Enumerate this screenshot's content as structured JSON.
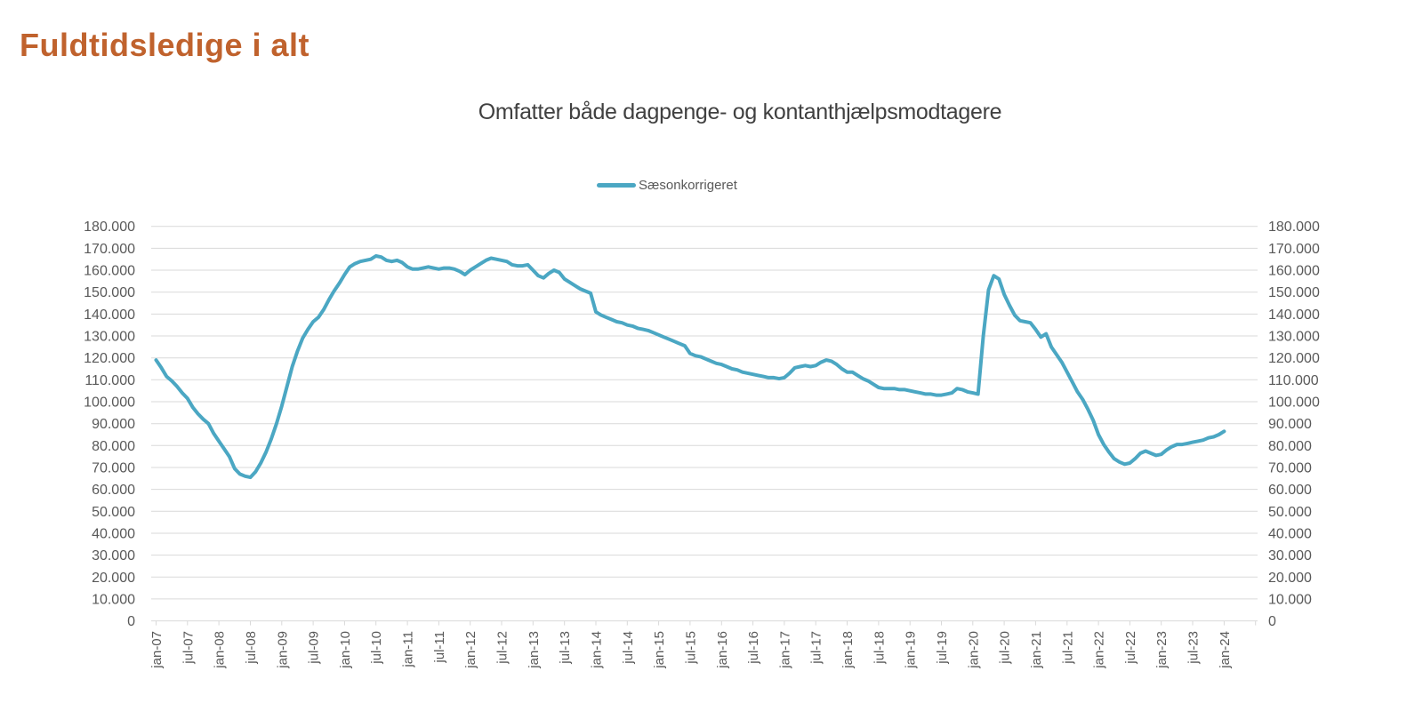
{
  "page": {
    "title": "Fuldtidsledige i alt"
  },
  "colors": {
    "title": "#c0622d",
    "subtitle": "#404040",
    "axis_text": "#595959",
    "grid": "#d9d9d9",
    "line": "#4ba7c3"
  },
  "chart_data": {
    "type": "line",
    "title": "Omfatter både dagpenge- og kontanthjælpsmodtagere",
    "legend": [
      "Sæsonkorrigeret"
    ],
    "legend_position": "top",
    "grid": "horizontal",
    "x_frequency": "monthly",
    "x_start": "jan-07",
    "x_end": "jan-24",
    "x_tick_labels": [
      "jan-07",
      "jul-07",
      "jan-08",
      "jul-08",
      "jan-09",
      "jul-09",
      "jan-10",
      "jul-10",
      "jan-11",
      "jul-11",
      "jan-12",
      "jul-12",
      "jan-13",
      "jul-13",
      "jan-14",
      "jul-14",
      "jan-15",
      "jul-15",
      "jan-16",
      "jul-16",
      "jan-17",
      "jul-17",
      "jan-18",
      "jul-18",
      "jan-19",
      "jul-19",
      "jan-20",
      "jul-20",
      "jan-21",
      "jul-21",
      "jan-22",
      "jul-22",
      "jan-23",
      "jul-23",
      "jan-24"
    ],
    "ylim": [
      0,
      180000
    ],
    "y_tick_step": 10000,
    "y_tick_labels": [
      "0",
      "10.000",
      "20.000",
      "30.000",
      "40.000",
      "50.000",
      "60.000",
      "70.000",
      "80.000",
      "90.000",
      "100.000",
      "110.000",
      "120.000",
      "130.000",
      "140.000",
      "150.000",
      "160.000",
      "170.000",
      "180.000"
    ],
    "y_axis_sides": "both",
    "series": [
      {
        "name": "Sæsonkorrigeret",
        "color": "#4ba7c3",
        "values": [
          119000,
          115500,
          111500,
          109500,
          107000,
          104000,
          101500,
          97500,
          94500,
          92000,
          90000,
          85500,
          82000,
          78500,
          75000,
          69500,
          67000,
          66000,
          65500,
          68000,
          72000,
          77000,
          83000,
          90000,
          98000,
          107000,
          116000,
          123000,
          129000,
          133000,
          136500,
          138500,
          142000,
          146500,
          150500,
          154000,
          158000,
          161500,
          163000,
          164000,
          164500,
          165000,
          166500,
          166000,
          164500,
          164000,
          164500,
          163500,
          161500,
          160500,
          160500,
          161000,
          161500,
          161000,
          160500,
          161000,
          161000,
          160500,
          159500,
          158000,
          160000,
          161500,
          163000,
          164500,
          165500,
          165000,
          164500,
          164000,
          162500,
          162000,
          162000,
          162500,
          160000,
          157500,
          156500,
          158500,
          160000,
          159000,
          156000,
          154500,
          153000,
          151500,
          150500,
          149500,
          141000,
          139500,
          138500,
          137500,
          136500,
          136000,
          135000,
          134500,
          133500,
          133000,
          132500,
          131500,
          130500,
          129500,
          128500,
          127500,
          126500,
          125500,
          122000,
          121000,
          120500,
          119500,
          118500,
          117500,
          117000,
          116000,
          115000,
          114500,
          113500,
          113000,
          112500,
          112000,
          111500,
          111000,
          111000,
          110500,
          111000,
          113000,
          115500,
          116000,
          116500,
          116000,
          116500,
          118000,
          119000,
          118500,
          117000,
          115000,
          113500,
          113500,
          112000,
          110500,
          109500,
          108000,
          106500,
          106000,
          106000,
          106000,
          105500,
          105500,
          105000,
          104500,
          104000,
          103500,
          103500,
          103000,
          103000,
          103500,
          104000,
          106000,
          105500,
          104500,
          104000,
          103500,
          130000,
          151000,
          157500,
          156000,
          149000,
          144000,
          139500,
          137000,
          136500,
          136000,
          133000,
          129500,
          131000,
          125000,
          121500,
          118000,
          113500,
          109000,
          104500,
          101000,
          96500,
          91500,
          85000,
          80500,
          77000,
          74000,
          72500,
          71500,
          72000,
          74000,
          76500,
          77500,
          76500,
          75500,
          76000,
          78000,
          79500,
          80500,
          80500,
          81000,
          81500,
          82000,
          82500,
          83500,
          84000,
          85000,
          86500
        ]
      }
    ]
  }
}
